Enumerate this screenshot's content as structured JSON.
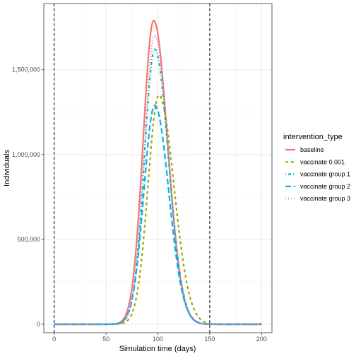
{
  "chart_data": {
    "type": "line",
    "xlabel": "Simulation time (days)",
    "ylabel": "Individuals",
    "xlim": [
      -10,
      210
    ],
    "ylim": [
      -50000,
      1890000
    ],
    "x_ticks": [
      0,
      50,
      100,
      150,
      200
    ],
    "x_tick_labels": [
      "0",
      "50",
      "100",
      "150",
      "200"
    ],
    "y_ticks": [
      0,
      500000,
      1000000,
      1500000
    ],
    "y_tick_labels": [
      "0",
      "500,000",
      "1,000,000",
      "1,500,000"
    ],
    "grid": true,
    "legend_position": "right",
    "legend_title": "intervention_type",
    "vlines": [
      0,
      150
    ],
    "series": [
      {
        "name": "baseline",
        "color": "#F8766D",
        "dash": "solid",
        "peak_day": 96,
        "peak": 1790000,
        "sigma_left": 10.2,
        "sigma_right": 13.2
      },
      {
        "name": "vaccinate 0.001",
        "color": "#A3A500",
        "dash": "dashed",
        "peak_day": 101,
        "peak": 1350000,
        "sigma_left": 10.5,
        "sigma_right": 14.5
      },
      {
        "name": "vaccinate group 1",
        "color": "#00BF7D",
        "dash": "dotdash",
        "peak_day": 97,
        "peak": 1620000,
        "sigma_left": 10.0,
        "sigma_right": 13.2
      },
      {
        "name": "vaccinate group 2",
        "color": "#00B0F6",
        "dash": "longdash",
        "peak_day": 97,
        "peak": 1290000,
        "sigma_left": 10.5,
        "sigma_right": 13.5
      },
      {
        "name": "vaccinate group 3",
        "color": "#E76BF3",
        "dash": "dotted",
        "peak_day": 97,
        "peak": 1700000,
        "sigma_left": 10.1,
        "sigma_right": 13.2
      }
    ]
  }
}
